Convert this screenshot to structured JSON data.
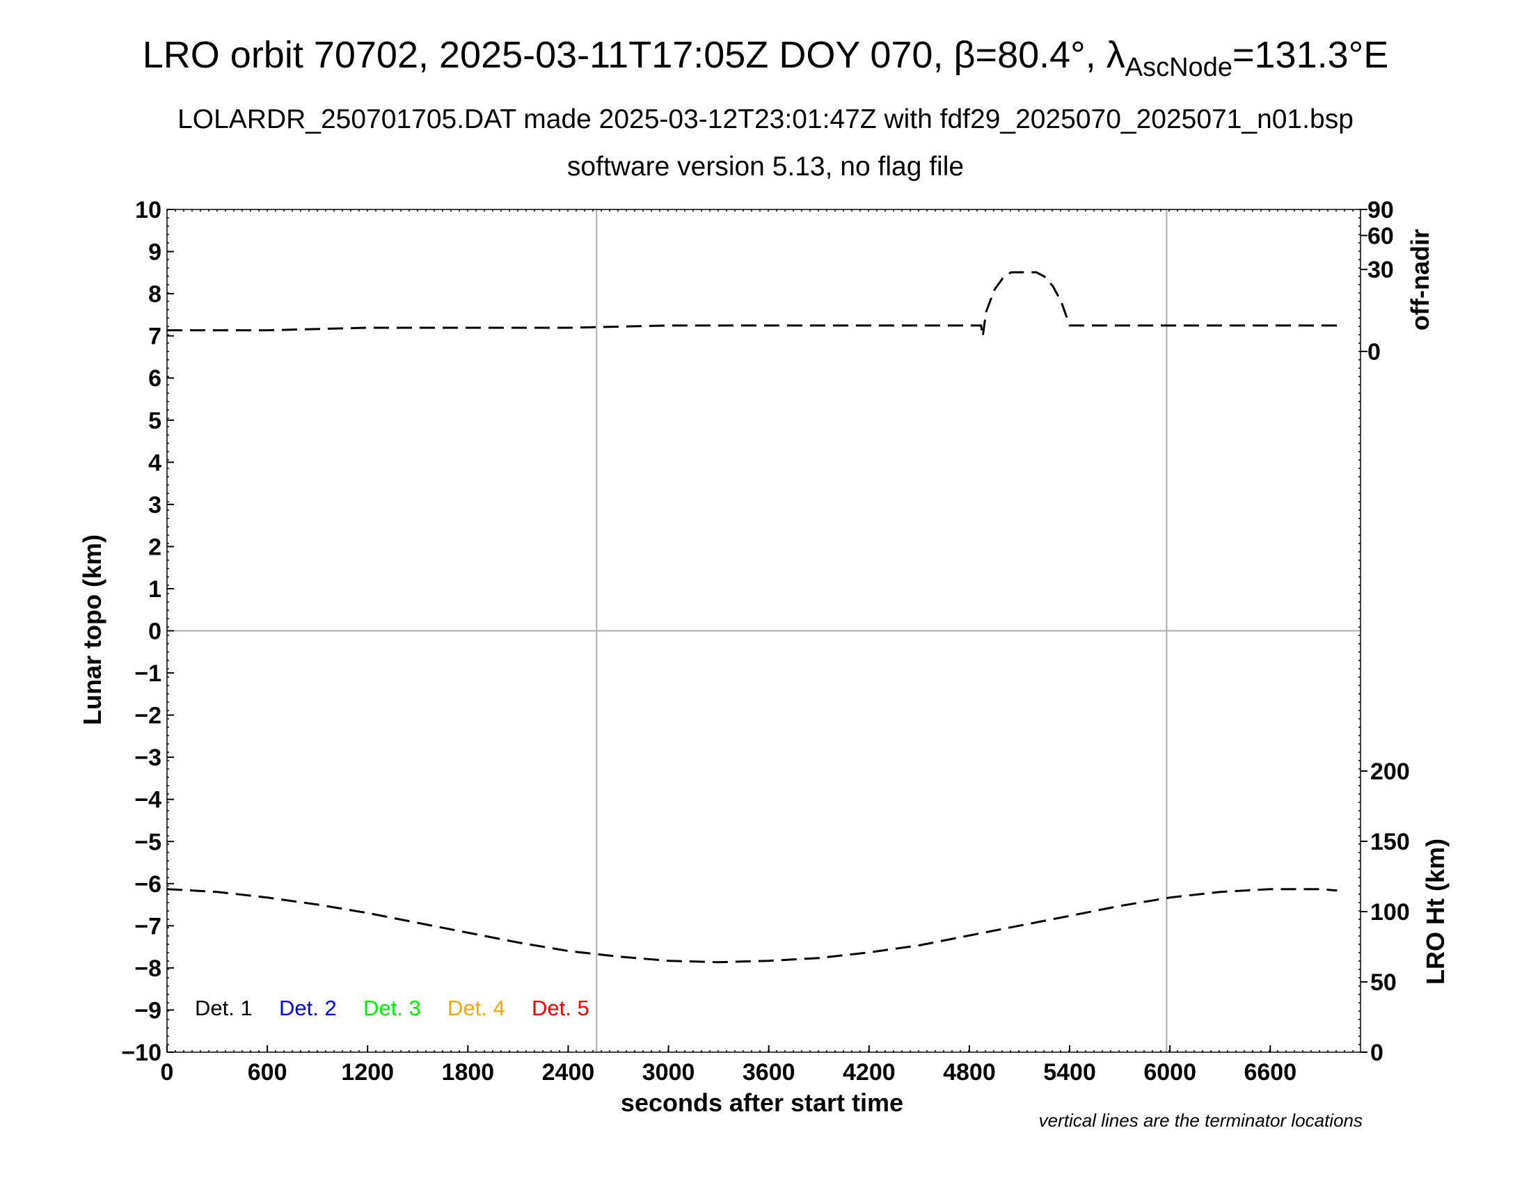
{
  "header": {
    "title_prefix": "LRO orbit 70702, 2025-03-11T17:05Z DOY 070, β=80.4°, λ",
    "title_sub": "AscNode",
    "title_suffix": "=131.3°E",
    "subtitle": "LOLARDR_250701705.DAT made 2025-03-12T23:01:47Z with fdf29_2025070_2025071_n01.bsp",
    "subtitle2": "software version 5.13, no flag file"
  },
  "chart_data": {
    "type": "line",
    "xlabel": "seconds after start time",
    "ylabel_left": "Lunar topo (km)",
    "ylabel_right_top": "off-nadir",
    "ylabel_right_bottom": "LRO Ht (km)",
    "xlim": [
      0,
      7140
    ],
    "x_ticks": [
      0,
      600,
      1200,
      1800,
      2400,
      3000,
      3600,
      4200,
      4800,
      5400,
      6000,
      6600
    ],
    "ylim_left": [
      -10,
      10
    ],
    "y_ticks_left": [
      10,
      9,
      8,
      7,
      6,
      5,
      4,
      3,
      2,
      1,
      0,
      -1,
      -2,
      -3,
      -4,
      -5,
      -6,
      -7,
      -8,
      -9,
      -10
    ],
    "y_tick_labels_left": [
      "10",
      "9",
      "8",
      "7",
      "6",
      "5",
      "4",
      "3",
      "2",
      "1",
      "0",
      "−1",
      "−2",
      "−3",
      "−4",
      "−5",
      "−6",
      "−7",
      "−8",
      "−9",
      "−10"
    ],
    "off_nadir_ticks": [
      "90",
      "60",
      "30",
      "0"
    ],
    "lro_ht_ticks": [
      "200",
      "150",
      "100",
      "50",
      "0"
    ],
    "terminator_x": [
      2570,
      5980
    ],
    "grid": "terminator lines and zero line",
    "legend": {
      "placement": "bottom-left",
      "entries": [
        {
          "label": "Det. 1",
          "color": "#000000"
        },
        {
          "label": "Det. 2",
          "color": "#0000ff"
        },
        {
          "label": "Det. 3",
          "color": "#00ee00"
        },
        {
          "label": "Det. 4",
          "color": "#ffa500"
        },
        {
          "label": "Det. 5",
          "color": "#ff0000"
        }
      ]
    },
    "series": [
      {
        "axis": "off-nadir (deg)",
        "style": "dashed",
        "x": [
          0,
          600,
          1200,
          1800,
          2400,
          3000,
          3600,
          4200,
          4870,
          4880,
          4900,
          4950,
          5000,
          5050,
          5100,
          5200,
          5250,
          5300,
          5350,
          5400,
          5410,
          5420,
          6000,
          6600,
          7000
        ],
        "values": [
          2,
          2,
          2.5,
          2.5,
          2.5,
          3,
          3,
          3,
          3,
          1,
          7,
          17,
          24,
          28,
          28,
          28,
          25,
          19,
          11,
          3,
          3,
          3,
          3,
          3,
          3
        ]
      },
      {
        "axis": "LRO Ht (km)",
        "style": "dashed",
        "x": [
          0,
          300,
          600,
          900,
          1200,
          1500,
          1800,
          2100,
          2400,
          2700,
          3000,
          3300,
          3600,
          3900,
          4200,
          4500,
          4800,
          5100,
          5400,
          5700,
          6000,
          6300,
          6600,
          6900,
          7000
        ],
        "values": [
          116,
          114,
          110,
          105,
          99,
          92,
          85,
          78,
          72,
          68,
          65,
          64,
          65,
          67,
          71,
          76,
          83,
          90,
          97,
          104,
          110,
          114,
          116,
          116,
          115
        ]
      }
    ],
    "note": "vertical lines are the terminator locations"
  }
}
